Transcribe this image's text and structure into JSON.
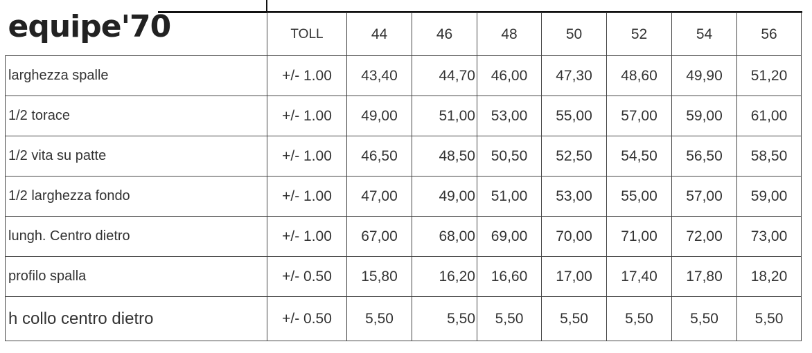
{
  "brand": {
    "logo_text": "equipe'70"
  },
  "table": {
    "toll_header": "TOLL",
    "sizes": [
      "44",
      "46",
      "48",
      "50",
      "52",
      "54",
      "56"
    ],
    "rows": [
      {
        "label": "larghezza spalle",
        "toll": "+/- 1.00",
        "values": [
          "43,40",
          "44,70",
          "46,00",
          "47,30",
          "48,60",
          "49,90",
          "51,20"
        ]
      },
      {
        "label": "1/2 torace",
        "toll": "+/- 1.00",
        "values": [
          "49,00",
          "51,00",
          "53,00",
          "55,00",
          "57,00",
          "59,00",
          "61,00"
        ]
      },
      {
        "label": "1/2 vita su patte",
        "toll": "+/- 1.00",
        "values": [
          "46,50",
          "48,50",
          "50,50",
          "52,50",
          "54,50",
          "56,50",
          "58,50"
        ]
      },
      {
        "label": "1/2 larghezza fondo",
        "toll": "+/- 1.00",
        "values": [
          "47,00",
          "49,00",
          "51,00",
          "53,00",
          "55,00",
          "57,00",
          "59,00"
        ]
      },
      {
        "label": "lungh. Centro dietro",
        "toll": "+/- 1.00",
        "values": [
          "67,00",
          "68,00",
          "69,00",
          "70,00",
          "71,00",
          "72,00",
          "73,00"
        ]
      },
      {
        "label": "profilo spalla",
        "toll": "+/- 0.50",
        "values": [
          "15,80",
          "16,20",
          "16,60",
          "17,00",
          "17,40",
          "17,80",
          "18,20"
        ]
      },
      {
        "label": "h collo centro dietro",
        "toll": "+/- 0.50",
        "values": [
          "5,50",
          "5,50",
          "5,50",
          "5,50",
          "5,50",
          "5,50",
          "5,50"
        ]
      }
    ]
  }
}
